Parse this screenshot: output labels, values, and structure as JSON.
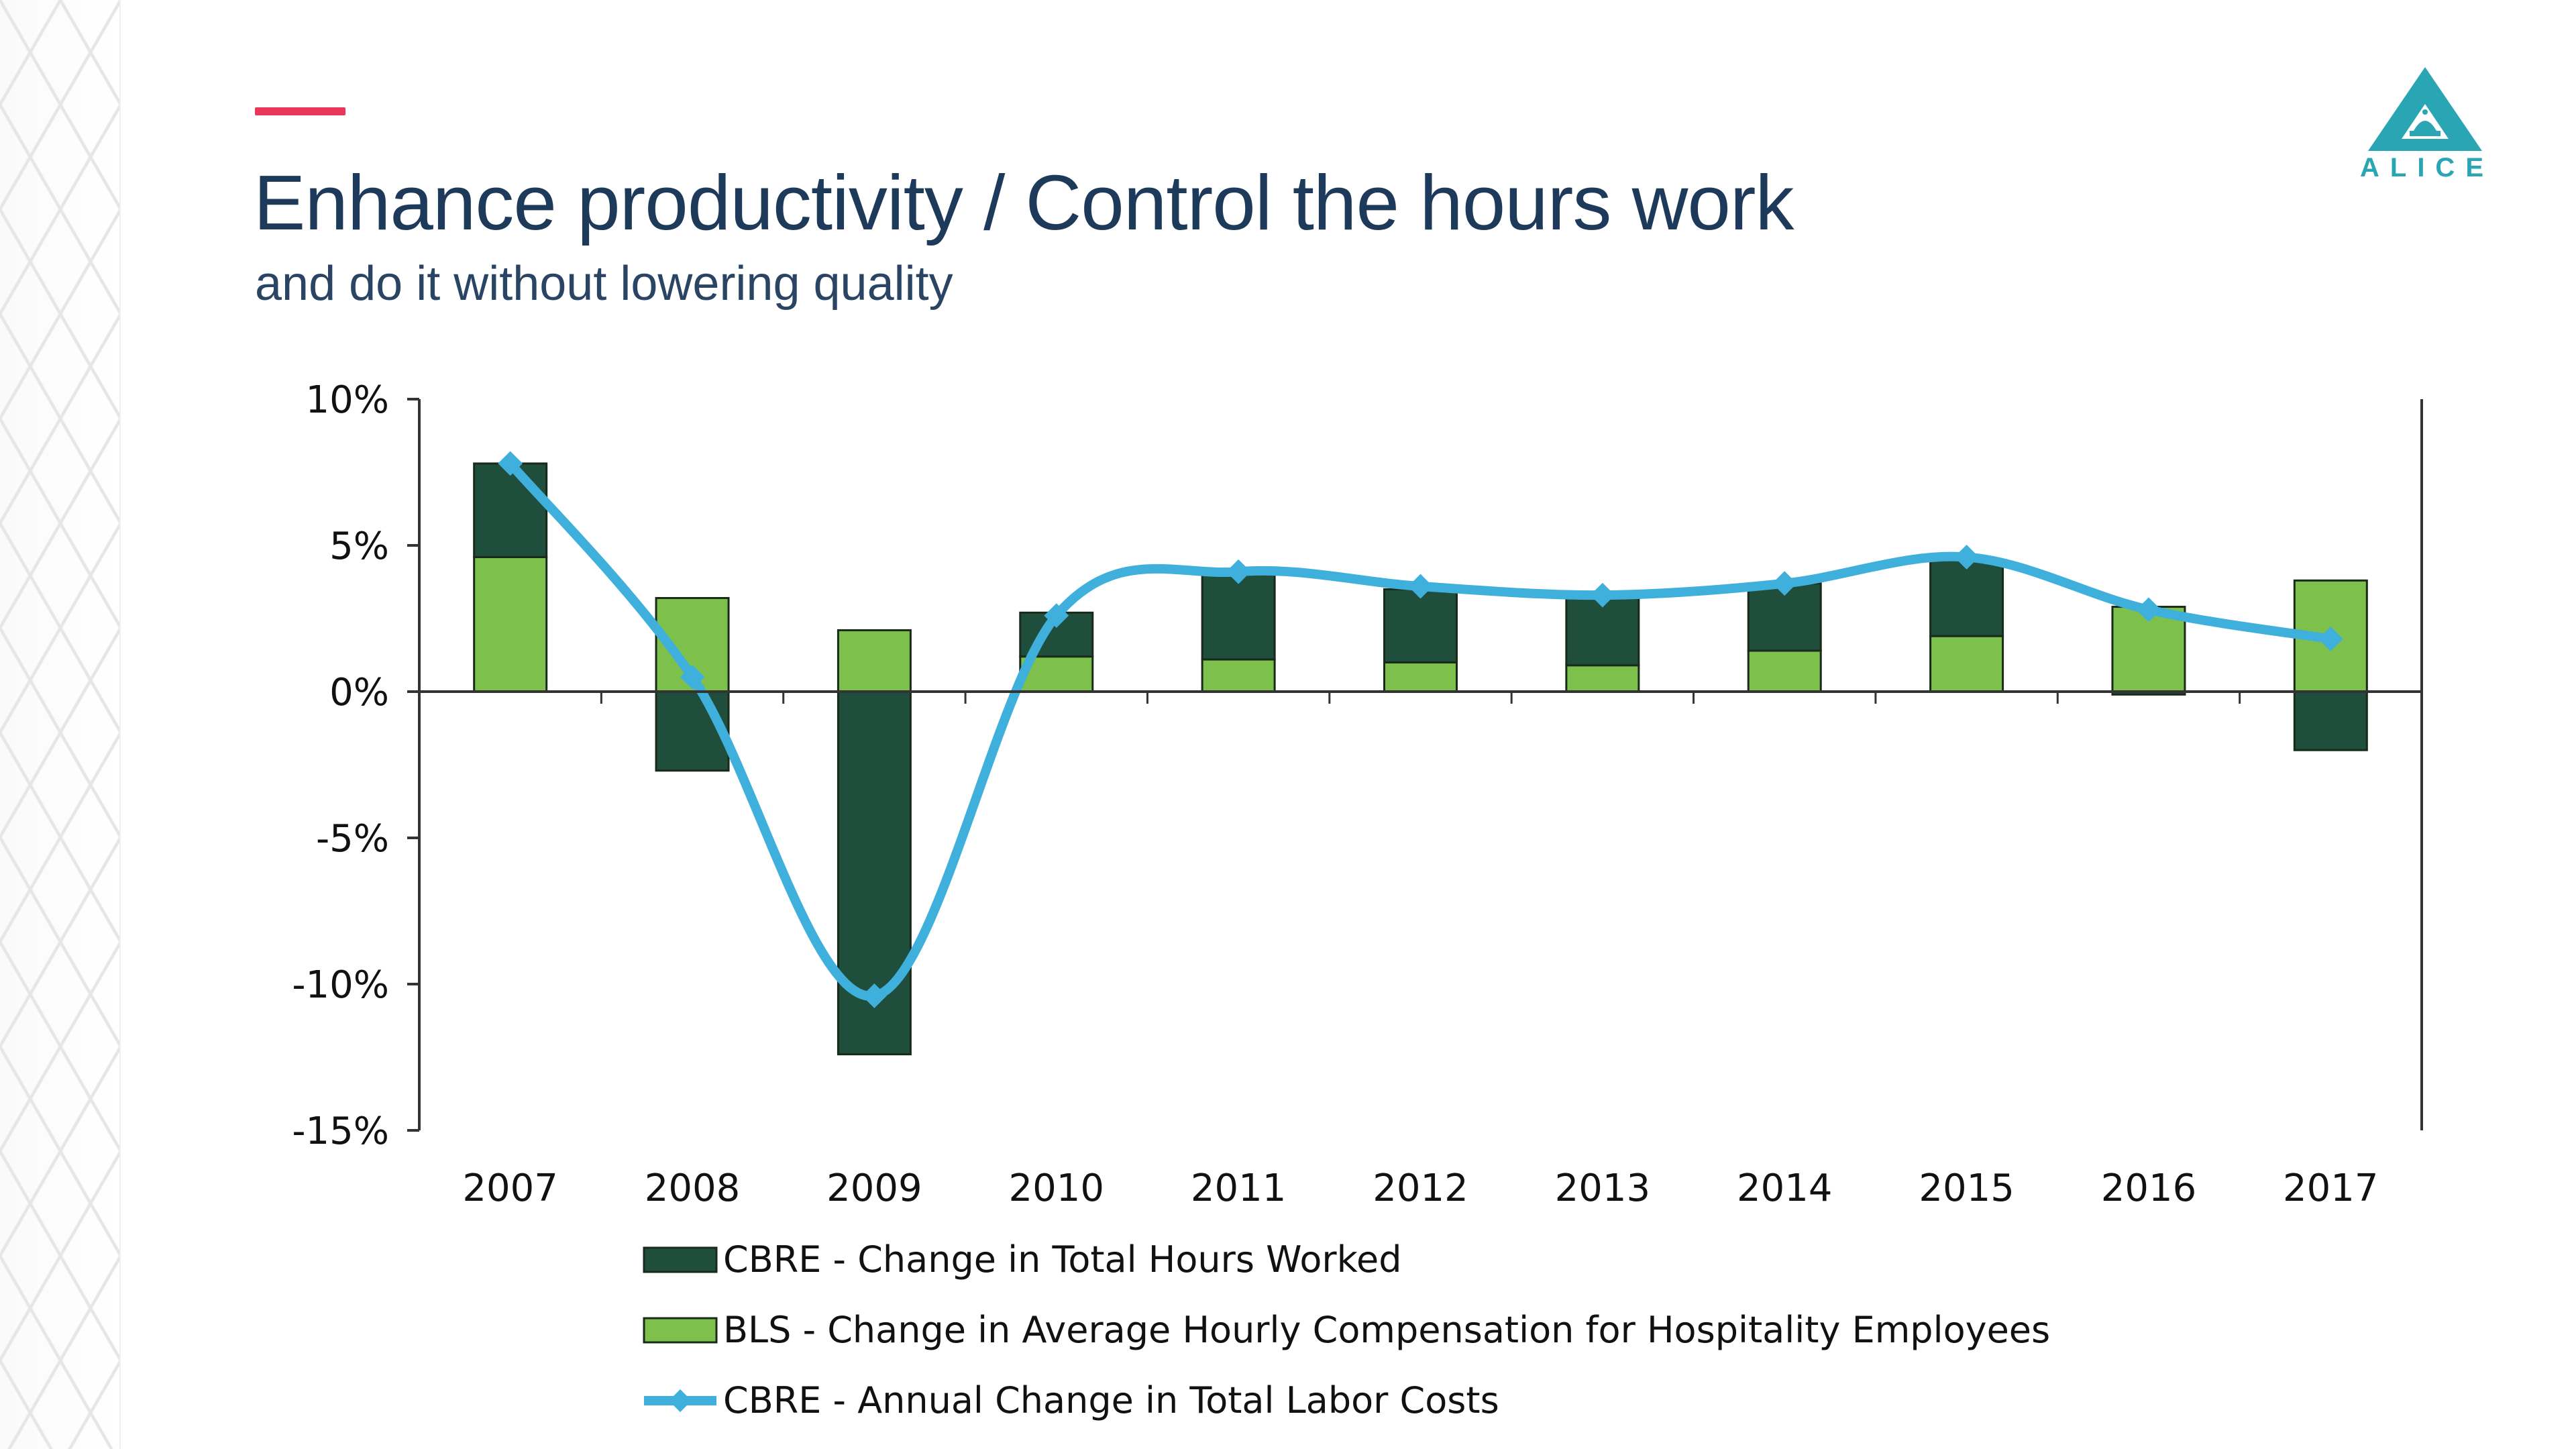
{
  "slide": {
    "title": "Enhance productivity / Control the hours work",
    "subtitle": "and do it without lowering quality"
  },
  "logo": {
    "text": "ALICE",
    "icon": "bell-a-icon",
    "color": "#2aa5b4"
  },
  "accent_color": "#e8375a",
  "chart_data": {
    "type": "bar",
    "stacked": true,
    "categories": [
      "2007",
      "2008",
      "2009",
      "2010",
      "2011",
      "2012",
      "2013",
      "2014",
      "2015",
      "2016",
      "2017"
    ],
    "series": [
      {
        "name": "CBRE - Change in Total Hours Worked",
        "kind": "bar",
        "color": "#1f4e3d",
        "values": [
          3.2,
          -2.7,
          -12.4,
          1.5,
          2.9,
          2.5,
          2.3,
          2.3,
          2.6,
          -0.1,
          -2.0
        ]
      },
      {
        "name": "BLS - Change in Average Hourly Compensation for Hospitality Employees",
        "kind": "bar",
        "color": "#7dc04b",
        "values": [
          4.6,
          3.2,
          2.1,
          1.2,
          1.1,
          1.0,
          0.9,
          1.4,
          1.9,
          2.9,
          3.8
        ]
      },
      {
        "name": "CBRE - Annual Change in Total Labor Costs",
        "kind": "line",
        "color": "#3fb0dc",
        "values": [
          7.8,
          0.5,
          -10.4,
          2.6,
          4.1,
          3.6,
          3.3,
          3.7,
          4.6,
          2.8,
          1.8
        ]
      }
    ],
    "yticks": [
      "10%",
      "5%",
      "0%",
      "-5%",
      "-10%",
      "-15%"
    ],
    "ylim": [
      -15,
      10
    ],
    "legend_position": "bottom"
  }
}
